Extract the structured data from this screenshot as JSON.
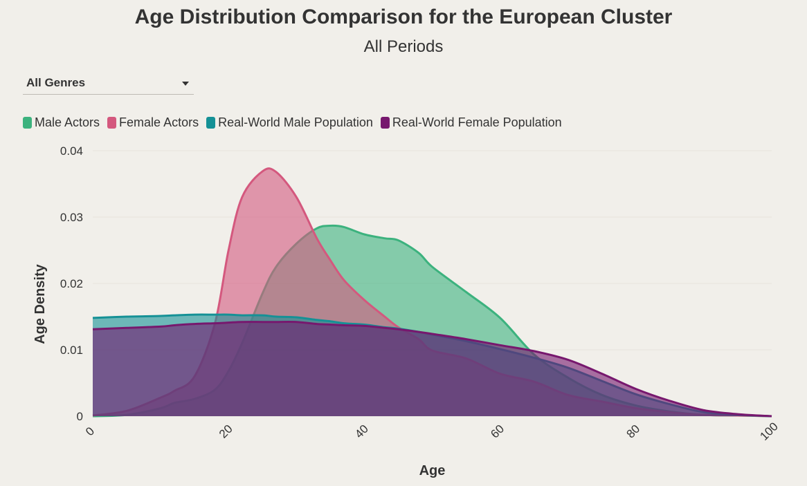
{
  "header": {
    "title": "Age Distribution Comparison for the European Cluster",
    "subtitle": "All Periods"
  },
  "filter": {
    "selected": "All Genres"
  },
  "chart_data": {
    "type": "area",
    "xlabel": "Age",
    "ylabel": "Age Density",
    "xlim": [
      0,
      100
    ],
    "ylim": [
      0,
      0.04
    ],
    "x_ticks": [
      "0",
      "20",
      "40",
      "60",
      "80",
      "100"
    ],
    "y_ticks": [
      "0",
      "0.01",
      "0.02",
      "0.03",
      "0.04"
    ],
    "grid": true,
    "legend_position": "top-left",
    "x": [
      0,
      5,
      10,
      12,
      15,
      18,
      20,
      22,
      25,
      27,
      30,
      33,
      35,
      37,
      40,
      43,
      45,
      48,
      50,
      55,
      60,
      65,
      70,
      75,
      80,
      85,
      90,
      95,
      100
    ],
    "series": [
      {
        "name": "Male Actors",
        "color": "#3cb27e",
        "values": [
          0.0,
          0.0002,
          0.0012,
          0.002,
          0.0026,
          0.004,
          0.0068,
          0.011,
          0.0185,
          0.0225,
          0.026,
          0.0283,
          0.0287,
          0.0285,
          0.0274,
          0.0268,
          0.0265,
          0.0246,
          0.0225,
          0.0187,
          0.0148,
          0.0093,
          0.0058,
          0.0032,
          0.0016,
          0.0007,
          0.0002,
          0.0001,
          0.0
        ]
      },
      {
        "name": "Female Actors",
        "color": "#d4587e",
        "values": [
          0.0001,
          0.0008,
          0.0028,
          0.0038,
          0.006,
          0.014,
          0.025,
          0.033,
          0.0369,
          0.0368,
          0.033,
          0.0268,
          0.0235,
          0.0205,
          0.0175,
          0.015,
          0.0134,
          0.0116,
          0.0099,
          0.0087,
          0.0064,
          0.0052,
          0.0032,
          0.0022,
          0.0012,
          0.0006,
          0.0002,
          0.0001,
          0.0
        ]
      },
      {
        "name": "Real-World Male Population",
        "color": "#159196",
        "values": [
          0.0148,
          0.015,
          0.0151,
          0.0152,
          0.0153,
          0.0153,
          0.0153,
          0.0152,
          0.0152,
          0.015,
          0.0149,
          0.0145,
          0.0143,
          0.014,
          0.0138,
          0.0134,
          0.0132,
          0.0127,
          0.0123,
          0.0113,
          0.0101,
          0.0088,
          0.0073,
          0.0053,
          0.0033,
          0.0018,
          0.0006,
          0.0002,
          0.0
        ]
      },
      {
        "name": "Real-World Female Population",
        "color": "#77186e",
        "values": [
          0.0131,
          0.0133,
          0.0135,
          0.0137,
          0.0139,
          0.014,
          0.0141,
          0.0142,
          0.0142,
          0.0142,
          0.0142,
          0.0139,
          0.0138,
          0.0137,
          0.0136,
          0.0133,
          0.0131,
          0.0127,
          0.0124,
          0.0116,
          0.0107,
          0.0098,
          0.0085,
          0.0064,
          0.0041,
          0.0023,
          0.0009,
          0.0003,
          0.0
        ]
      }
    ]
  }
}
